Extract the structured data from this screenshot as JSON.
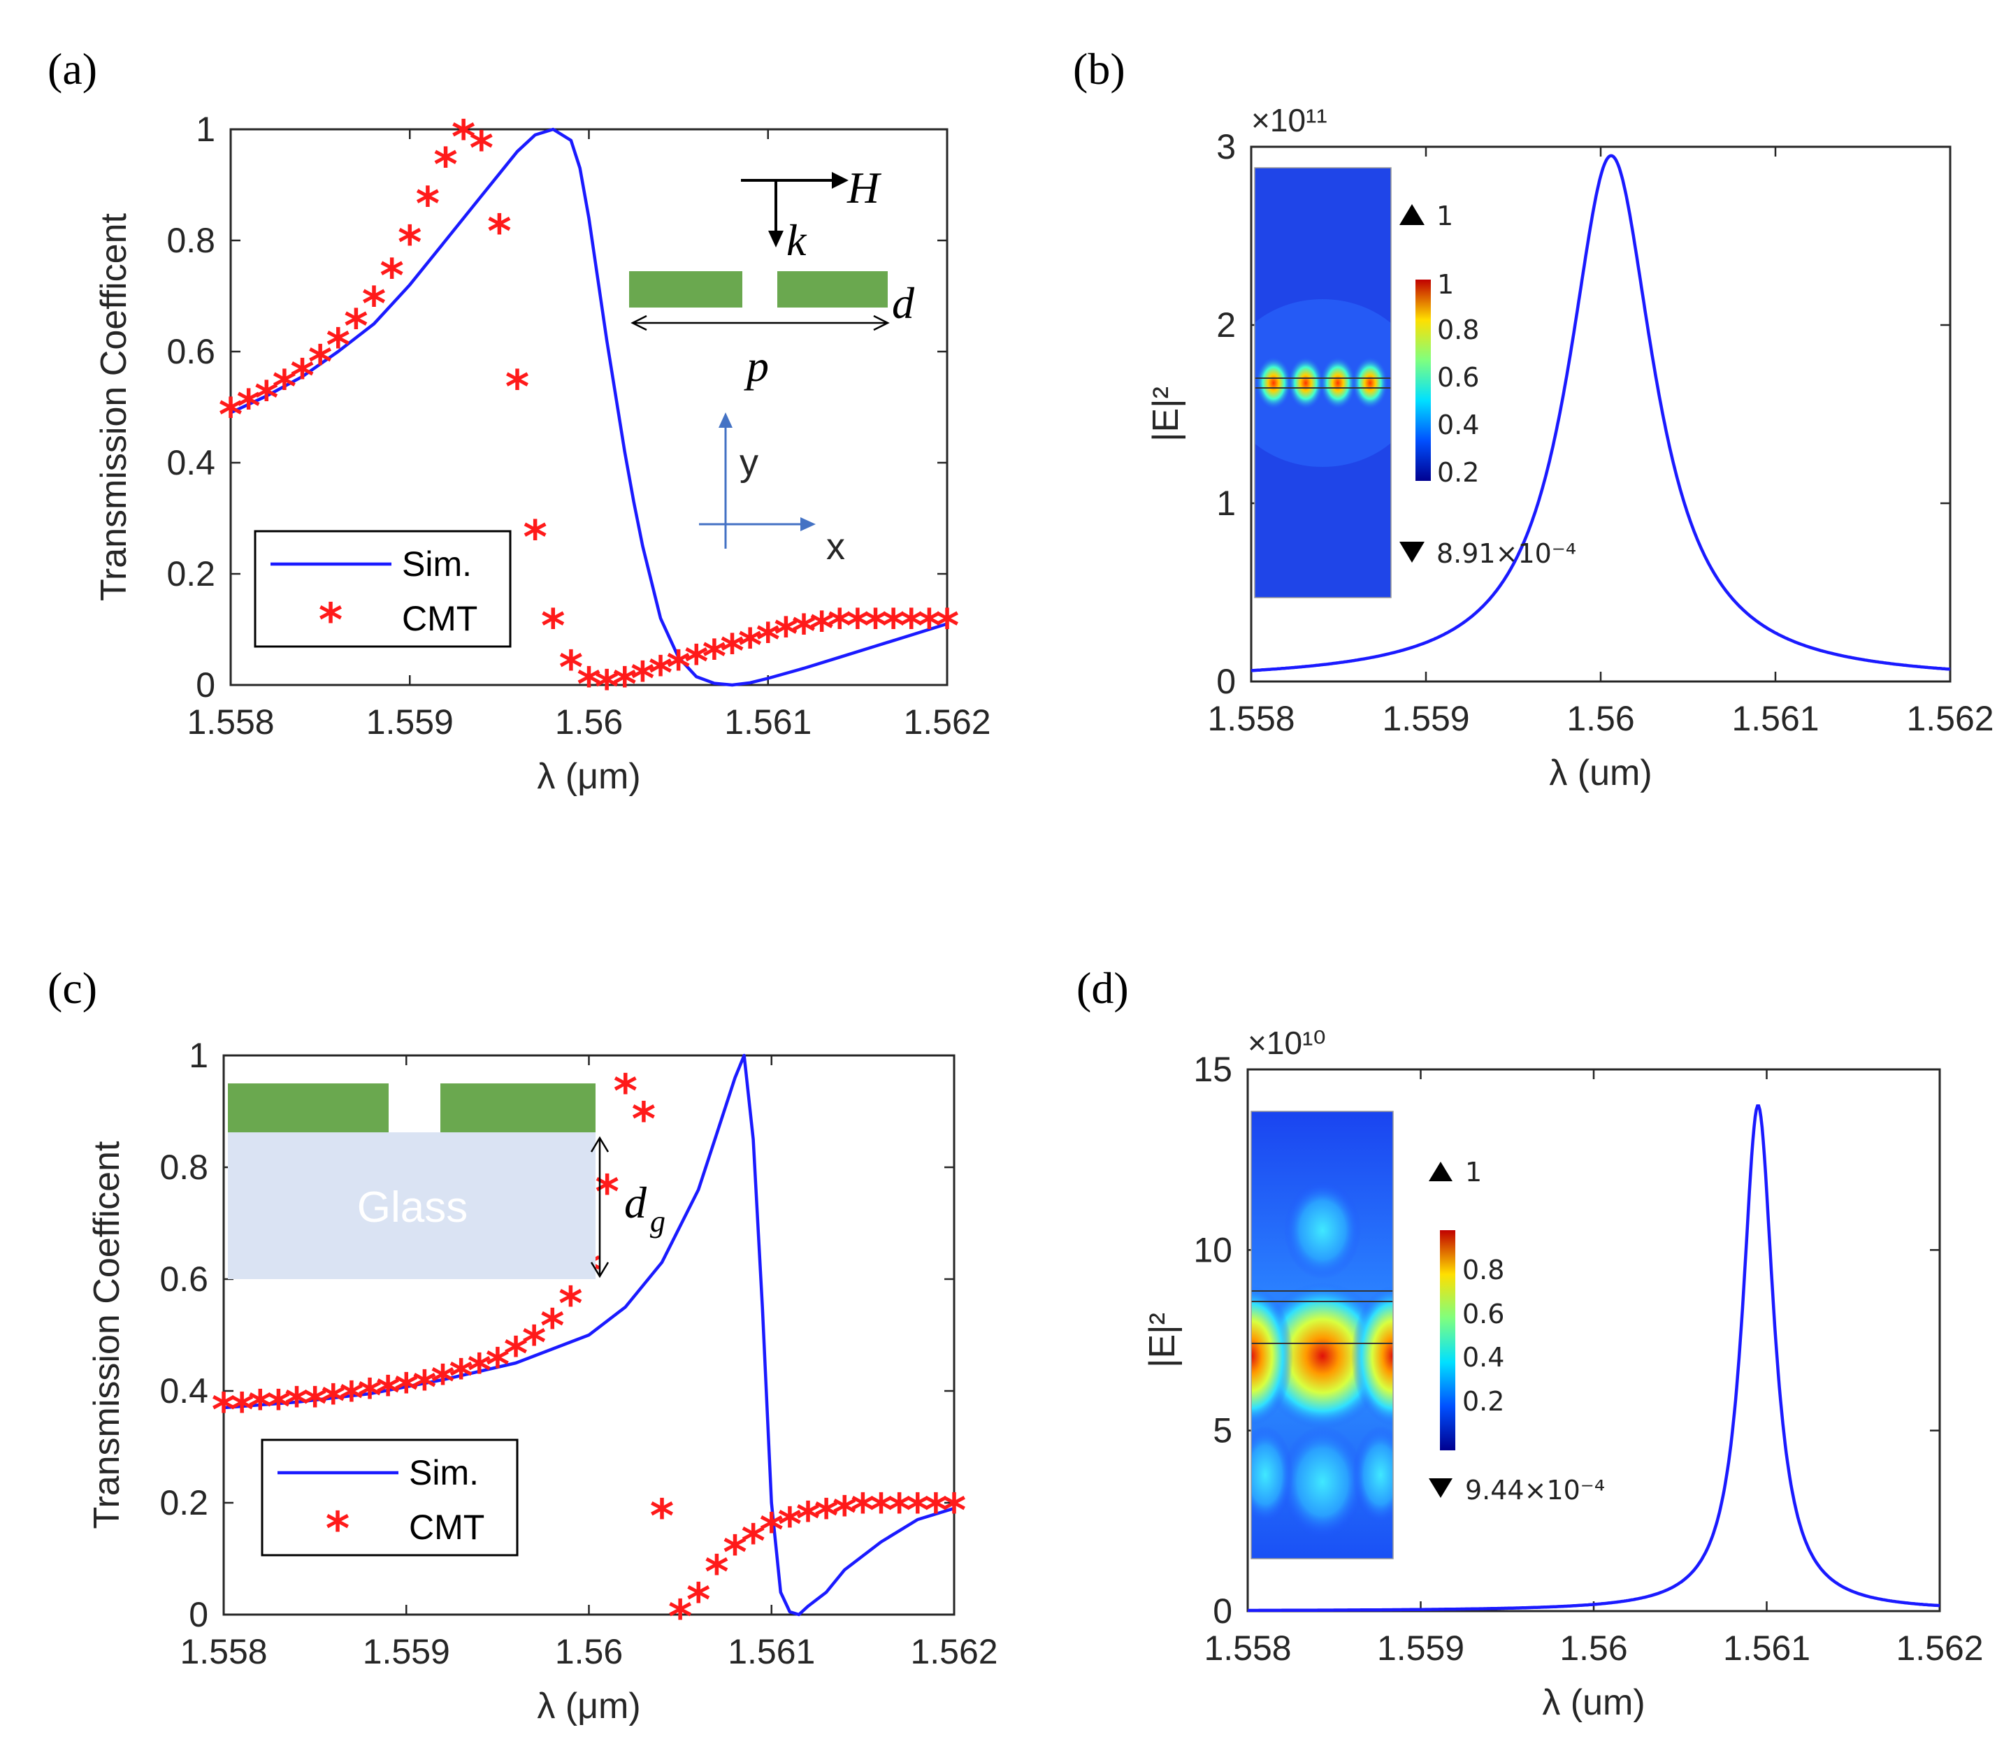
{
  "panels": {
    "a": {
      "letter": "(a)"
    },
    "b": {
      "letter": "(b)"
    },
    "c": {
      "letter": "(c)"
    },
    "d": {
      "letter": "(d)"
    }
  },
  "inset_a": {
    "H": "H",
    "k": "k",
    "d": "d",
    "p": "p",
    "y": "y",
    "x": "x",
    "grating_color": "#6aa84f"
  },
  "inset_c": {
    "glass": "Glass",
    "dg_main": "d",
    "dg_sub": "g",
    "glass_color": "#dae3f3",
    "grating_color": "#6aa84f"
  },
  "inset_b": {
    "max_label": "1",
    "min_label": "8.91×10⁻⁴",
    "cbar_ticks": [
      "1",
      "0.8",
      "0.6",
      "0.4",
      "0.2"
    ]
  },
  "inset_d": {
    "max_label": "1",
    "min_label": "9.44×10⁻⁴",
    "cbar_ticks": [
      "0.8",
      "0.6",
      "0.4",
      "0.2"
    ]
  },
  "colors": {
    "sim": "#1a1aff",
    "cmt": "#ff1a1a",
    "axis": "#262626"
  },
  "chart_data": [
    {
      "panel": "a",
      "type": "line",
      "xlabel": "λ (μm)",
      "ylabel": "Transmission Coefficent",
      "xlim": [
        1.558,
        1.562
      ],
      "ylim": [
        0,
        1
      ],
      "xticks": [
        "1.558",
        "1.559",
        "1.56",
        "1.561",
        "1.562"
      ],
      "yticks": [
        "0",
        "0.2",
        "0.4",
        "0.6",
        "0.8",
        "1"
      ],
      "legend": [
        "Sim.",
        "CMT"
      ],
      "legend_position": "bottom-left",
      "series": [
        {
          "name": "Sim.",
          "style": "line",
          "x": [
            1.558,
            1.5582,
            1.5584,
            1.5586,
            1.5588,
            1.559,
            1.5592,
            1.5594,
            1.5596,
            1.5597,
            1.5598,
            1.5599,
            1.55995,
            1.56,
            1.56005,
            1.5601,
            1.56015,
            1.5602,
            1.56025,
            1.5603,
            1.5604,
            1.5605,
            1.5606,
            1.5607,
            1.5608,
            1.5609,
            1.561,
            1.5612,
            1.5614,
            1.5616,
            1.5618,
            1.562
          ],
          "y": [
            0.49,
            0.52,
            0.555,
            0.6,
            0.65,
            0.72,
            0.8,
            0.88,
            0.96,
            0.99,
            1.0,
            0.98,
            0.93,
            0.84,
            0.73,
            0.62,
            0.52,
            0.42,
            0.33,
            0.25,
            0.12,
            0.05,
            0.015,
            0.003,
            0.0,
            0.004,
            0.012,
            0.03,
            0.05,
            0.07,
            0.09,
            0.11
          ]
        },
        {
          "name": "CMT",
          "style": "marker",
          "x": [
            1.558,
            1.5581,
            1.5582,
            1.5583,
            1.5584,
            1.5585,
            1.5586,
            1.5587,
            1.5588,
            1.5589,
            1.559,
            1.5591,
            1.5592,
            1.5593,
            1.5594,
            1.5595,
            1.5596,
            1.5597,
            1.5598,
            1.5599,
            1.56,
            1.5601,
            1.5602,
            1.5603,
            1.5604,
            1.5605,
            1.5606,
            1.5607,
            1.5608,
            1.5609,
            1.561,
            1.5611,
            1.5612,
            1.5613,
            1.5614,
            1.5615,
            1.5616,
            1.5617,
            1.5618,
            1.5619,
            1.562
          ],
          "y": [
            0.49,
            0.505,
            0.52,
            0.54,
            0.56,
            0.585,
            0.615,
            0.65,
            0.69,
            0.74,
            0.8,
            0.87,
            0.94,
            0.99,
            0.97,
            0.82,
            0.54,
            0.27,
            0.11,
            0.035,
            0.005,
            0.0,
            0.005,
            0.015,
            0.025,
            0.035,
            0.045,
            0.055,
            0.065,
            0.075,
            0.085,
            0.095,
            0.1,
            0.105,
            0.11,
            0.11,
            0.11,
            0.11,
            0.11,
            0.11,
            0.11
          ]
        }
      ]
    },
    {
      "panel": "b",
      "type": "line",
      "xlabel": "λ (um)",
      "ylabel": "|E|²",
      "y_multiplier": "×10¹¹",
      "xlim": [
        1.558,
        1.562
      ],
      "ylim": [
        0,
        3
      ],
      "xticks": [
        "1.558",
        "1.559",
        "1.56",
        "1.561",
        "1.562"
      ],
      "yticks": [
        "0",
        "1",
        "2",
        "3"
      ],
      "series": [
        {
          "style": "line",
          "lorentz": {
            "center": 1.56006,
            "peak": 2.95,
            "hwhm": 0.0003
          }
        }
      ]
    },
    {
      "panel": "c",
      "type": "line",
      "xlabel": "λ (μm)",
      "ylabel": "Transmission Coefficent",
      "xlim": [
        1.558,
        1.562
      ],
      "ylim": [
        0,
        1
      ],
      "xticks": [
        "1.558",
        "1.559",
        "1.56",
        "1.561",
        "1.562"
      ],
      "yticks": [
        "0",
        "0.2",
        "0.4",
        "0.6",
        "0.8",
        "1"
      ],
      "legend": [
        "Sim.",
        "CMT"
      ],
      "legend_position": "bottom-left",
      "series": [
        {
          "name": "Sim.",
          "style": "line",
          "x": [
            1.558,
            1.5584,
            1.5588,
            1.5592,
            1.5596,
            1.56,
            1.5602,
            1.5604,
            1.5606,
            1.5607,
            1.5608,
            1.56085,
            1.5609,
            1.56095,
            1.561,
            1.56105,
            1.5611,
            1.56115,
            1.5612,
            1.5613,
            1.5614,
            1.5616,
            1.5618,
            1.562
          ],
          "y": [
            0.37,
            0.38,
            0.395,
            0.42,
            0.45,
            0.5,
            0.55,
            0.63,
            0.76,
            0.86,
            0.96,
            1.0,
            0.85,
            0.55,
            0.2,
            0.04,
            0.005,
            0.0,
            0.015,
            0.04,
            0.08,
            0.13,
            0.17,
            0.19
          ]
        },
        {
          "name": "CMT",
          "style": "marker",
          "x": [
            1.558,
            1.5581,
            1.5582,
            1.5583,
            1.5584,
            1.5585,
            1.5586,
            1.5587,
            1.5588,
            1.5589,
            1.559,
            1.5591,
            1.5592,
            1.5593,
            1.5594,
            1.5595,
            1.5596,
            1.5597,
            1.5598,
            1.5599,
            1.56,
            1.5601,
            1.5602,
            1.5603,
            1.5604,
            1.5605,
            1.5606,
            1.5607,
            1.5608,
            1.5609,
            1.561,
            1.5611,
            1.5612,
            1.5613,
            1.5614,
            1.5615,
            1.5616,
            1.5617,
            1.5618,
            1.5619,
            1.562
          ],
          "y": [
            0.37,
            0.37,
            0.375,
            0.375,
            0.38,
            0.38,
            0.385,
            0.39,
            0.395,
            0.4,
            0.405,
            0.41,
            0.42,
            0.43,
            0.44,
            0.45,
            0.47,
            0.49,
            0.52,
            0.56,
            0.62,
            0.76,
            0.94,
            0.89,
            0.18,
            0.0,
            0.03,
            0.08,
            0.115,
            0.135,
            0.155,
            0.165,
            0.175,
            0.18,
            0.185,
            0.19,
            0.19,
            0.19,
            0.19,
            0.19,
            0.19
          ]
        }
      ]
    },
    {
      "panel": "d",
      "type": "line",
      "xlabel": "λ (um)",
      "ylabel": "|E|²",
      "y_multiplier": "×10¹⁰",
      "xlim": [
        1.558,
        1.562
      ],
      "ylim": [
        0,
        15
      ],
      "xticks": [
        "1.558",
        "1.559",
        "1.56",
        "1.561",
        "1.562"
      ],
      "yticks": [
        "0",
        "5",
        "10",
        "15"
      ],
      "series": [
        {
          "style": "line",
          "lorentz": {
            "center": 1.56095,
            "peak": 14.0,
            "hwhm": 0.00011
          }
        }
      ]
    }
  ]
}
